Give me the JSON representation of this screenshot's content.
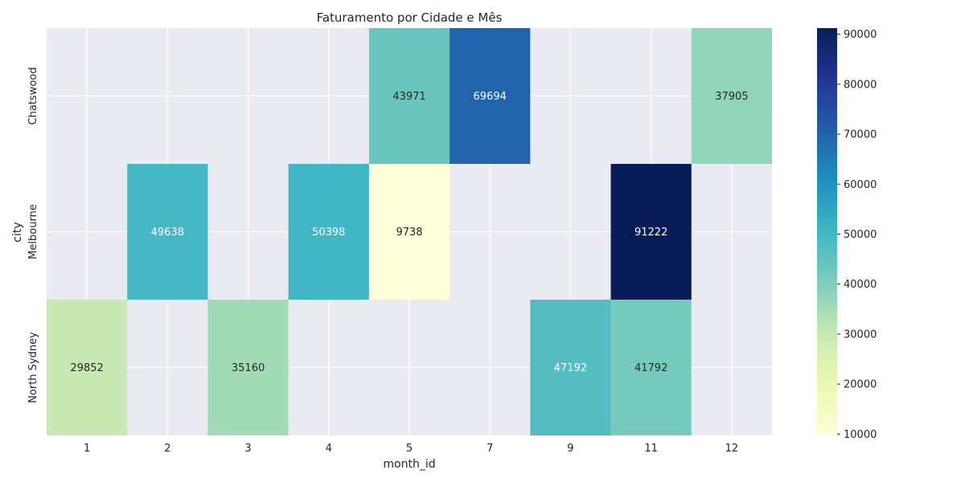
{
  "chart_data": {
    "type": "heatmap",
    "title": "Faturamento por Cidade e Mês",
    "xlabel": "month_id",
    "ylabel": "city",
    "x": [
      "1",
      "2",
      "3",
      "4",
      "5",
      "7",
      "9",
      "11",
      "12"
    ],
    "y": [
      "Chatswood",
      "Melbourne",
      "North Sydney"
    ],
    "values": [
      [
        null,
        null,
        null,
        null,
        43971,
        69694,
        null,
        null,
        37905
      ],
      [
        null,
        49638,
        null,
        50398,
        9738,
        null,
        null,
        91222,
        null
      ],
      [
        29852,
        null,
        35160,
        null,
        null,
        null,
        47192,
        41792,
        null
      ]
    ],
    "colorbar": {
      "min": 9738,
      "max": 91222,
      "ticks": [
        "10000",
        "20000",
        "30000",
        "40000",
        "50000",
        "60000",
        "70000",
        "80000",
        "90000"
      ],
      "colormap": "YlGnBu"
    },
    "grid": true,
    "background": "#eaeaf2"
  }
}
